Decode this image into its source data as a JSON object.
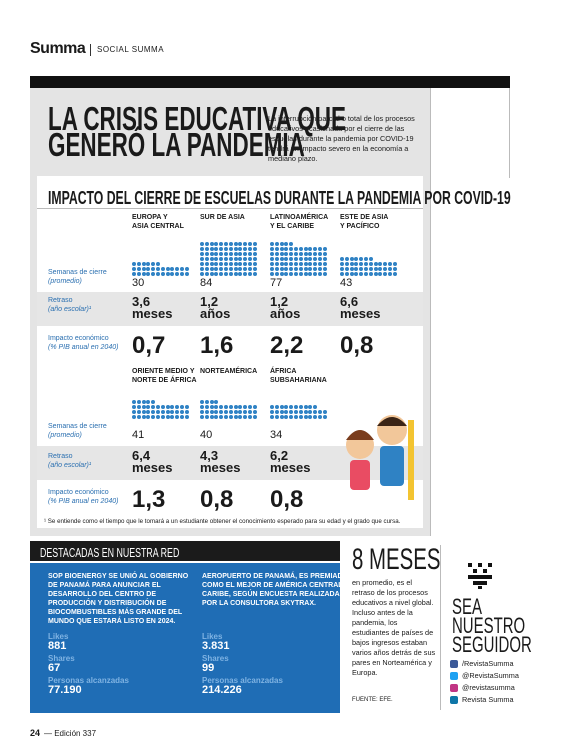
{
  "header": {
    "brand": "Summa",
    "section": "SOCIAL SUMMA"
  },
  "article": {
    "title_lines": [
      "LA CRISIS EDUCATIVA QUE",
      "GENERÓ LA PANDEMIA"
    ],
    "intro": "La interrupción parcial o total de los procesos educativos ocasionada por el cierre de las escuelas durante la pandemia por COVID-19 tendrá un impacto severo en la economía a mediano plazo."
  },
  "infographic": {
    "title": "IMPACTO DEL CIERRE DE ESCUELAS DURANTE LA PANDEMIA POR COVID-19",
    "row_labels": {
      "weeks": [
        "Semanas de cierre",
        "(promedio)"
      ],
      "delay": [
        "Retraso",
        "(año escolar)¹"
      ],
      "impact": [
        "Impacto económico",
        "(% PIB anual en 2040)"
      ]
    },
    "groups": [
      {
        "regions": [
          {
            "name_lines": [
              "EUROPA Y",
              "ASIA CENTRAL"
            ],
            "weeks": 30,
            "delay": "3,6",
            "delay_unit": "meses",
            "impact": "0,7"
          },
          {
            "name_lines": [
              "SUR DE ASIA"
            ],
            "weeks": 84,
            "delay": "1,2",
            "delay_unit": "años",
            "impact": "1,6"
          },
          {
            "name_lines": [
              "LATINOAMÉRICA",
              "Y EL CARIBE"
            ],
            "weeks": 77,
            "delay": "1,2",
            "delay_unit": "años",
            "impact": "2,2"
          },
          {
            "name_lines": [
              "ESTE DE ASIA",
              "Y PACÍFICO"
            ],
            "weeks": 43,
            "delay": "6,6",
            "delay_unit": "meses",
            "impact": "0,8"
          }
        ]
      },
      {
        "regions": [
          {
            "name_lines": [
              "ORIENTE MEDIO Y",
              "NORTE DE ÁFRICA"
            ],
            "weeks": 41,
            "delay": "6,4",
            "delay_unit": "meses",
            "impact": "1,3"
          },
          {
            "name_lines": [
              "NORTEAMÉRICA"
            ],
            "weeks": 40,
            "delay": "4,3",
            "delay_unit": "meses",
            "impact": "0,8"
          },
          {
            "name_lines": [
              "ÁFRICA",
              "SUBSAHARIANA"
            ],
            "weeks": 34,
            "delay": "6,2",
            "delay_unit": "meses",
            "impact": "0,8"
          }
        ]
      }
    ],
    "footnote": "¹ Se entiende como el tiempo que le tomará a un estudiante obtener el conocimiento esperado para su edad y el grado que cursa."
  },
  "network": {
    "title": "DESTACADAS EN NUESTRA RED",
    "posts": [
      {
        "text": "SOP BIOENERGY SE UNIÓ AL GOBIERNO DE PANAMÁ PARA ANUNCIAR EL DESARROLLO DEL CENTRO DE PRODUCCIÓN Y DISTRIBUCIÓN DE BIOCOMBUSTIBLES MÁS GRANDE DEL MUNDO QUE ESTARÁ LISTO EN 2024.",
        "likes_label": "Likes",
        "likes": 881,
        "shares_label": "Shares",
        "shares": 67,
        "reach_label": "Personas alcanzadas",
        "reach": "77.190"
      },
      {
        "text": "AEROPUERTO DE PANAMÁ, ES PREMIADO COMO EL MEJOR DE AMÉRICA CENTRAL Y CARIBE, SEGÚN ENCUESTA REALIZADA POR LA CONSULTORA SKYTRAX.",
        "likes_label": "Likes",
        "likes": "3.831",
        "shares_label": "Shares",
        "shares": 99,
        "reach_label": "Personas alcanzadas",
        "reach": "214.226"
      }
    ]
  },
  "stat": {
    "headline": "8 MESES",
    "text": "en promedio, es el retraso de los procesos educativos a nivel global. Incluso antes de la pandemia, los estudiantes de países de bajos ingresos estaban varios años detrás de sus pares en Norteamérica y Europa.",
    "source": "FUENTE: EFE."
  },
  "follow": {
    "lines": [
      "SEA",
      "NUESTRO",
      "SEGUIDOR"
    ],
    "accounts": [
      "/RevistaSumma",
      "@RevistaSumma",
      "@revistasumma",
      "Revista Summa"
    ]
  },
  "footer": {
    "page": "24",
    "edition": "— Edición 337"
  }
}
